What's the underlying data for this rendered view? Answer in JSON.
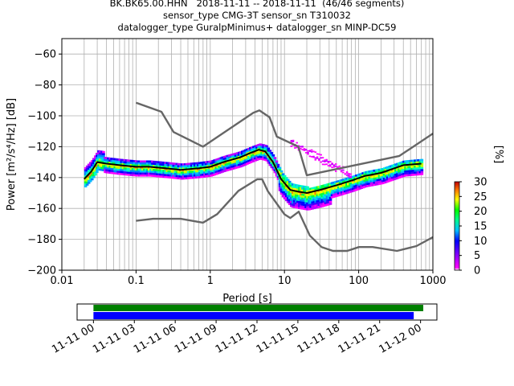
{
  "chart_data": {
    "type": "heatmap",
    "title_lines": [
      "BK.BK65.00.HHN   2018-11-11 -- 2018-11-11  (46/46 segments)",
      "sensor_type CMG-3T sensor_sn T310032",
      "datalogger_type GuralpMinimus+ datalogger_sn MINP-DC59"
    ],
    "xlabel": "Period [s]",
    "ylabel": "Power [m²/s⁴/Hz] [dB]",
    "x_scale": "log",
    "xlim": [
      0.01,
      1000
    ],
    "ylim": [
      -200,
      -50
    ],
    "x_tick_labels": [
      "0.01",
      "0.1",
      "1",
      "10",
      "100",
      "1000"
    ],
    "y_ticks": [
      -60,
      -80,
      -100,
      -120,
      -140,
      -160,
      -180,
      -200
    ],
    "grid": true,
    "colorbar": {
      "label": "[%]",
      "range": [
        0,
        30
      ],
      "ticks": [
        0,
        5,
        10,
        15,
        20,
        25,
        30
      ]
    },
    "series": [
      {
        "name": "NHNM",
        "color": "#666666",
        "x": [
          0.1,
          0.22,
          0.32,
          0.8,
          3.8,
          4.6,
          6.3,
          7.9,
          15.4,
          20,
          354,
          1000
        ],
        "y": [
          -91.5,
          -97.4,
          -110.5,
          -120,
          -98,
          -96.5,
          -101,
          -113.5,
          -120,
          -138.5,
          -126,
          -111.5
        ]
      },
      {
        "name": "NLNM",
        "color": "#666666",
        "x": [
          0.1,
          0.17,
          0.4,
          0.8,
          1.24,
          2.4,
          4.3,
          5,
          6,
          10,
          12,
          15.6,
          21.9,
          31.6,
          45,
          70,
          101,
          154,
          328,
          600,
          1000
        ],
        "y": [
          -168,
          -166.7,
          -166.7,
          -169.2,
          -163.7,
          -148.6,
          -141.1,
          -141.1,
          -149,
          -163.8,
          -166.2,
          -162.1,
          -177.5,
          -185,
          -187.5,
          -187.5,
          -185,
          -185,
          -187.5,
          -184.4,
          -178.6
        ]
      },
      {
        "name": "mode",
        "color": "#000000",
        "x": [
          0.02,
          0.025,
          0.03,
          0.04,
          0.06,
          0.1,
          0.15,
          0.25,
          0.4,
          0.7,
          1.0,
          1.5,
          2.5,
          3.5,
          4.5,
          5.5,
          7,
          9,
          12,
          15,
          20,
          30,
          50,
          80,
          120,
          200,
          400,
          700
        ],
        "y": [
          -141,
          -136,
          -130,
          -131,
          -132,
          -133,
          -133,
          -134,
          -135,
          -134,
          -133,
          -130,
          -127,
          -124,
          -122,
          -123,
          -130,
          -141,
          -148,
          -149,
          -150,
          -148,
          -145,
          -142,
          -139,
          -137,
          -132,
          -131
        ]
      }
    ],
    "time_axis": {
      "tick_labels": [
        "11-11 00",
        "11-11 03",
        "11-11 06",
        "11-11 09",
        "11-11 12",
        "11-11 15",
        "11-11 18",
        "11-11 21",
        "11-12 00"
      ],
      "hours": [
        0,
        3,
        6,
        9,
        12,
        15,
        18,
        21,
        24
      ],
      "xlim_hours": [
        -1.2,
        25.2
      ],
      "data_coverage_hours": [
        0,
        24.2
      ],
      "psd_coverage_hours": [
        0,
        23.5
      ],
      "data_color": "#008000",
      "psd_color": "#0000ff"
    }
  }
}
